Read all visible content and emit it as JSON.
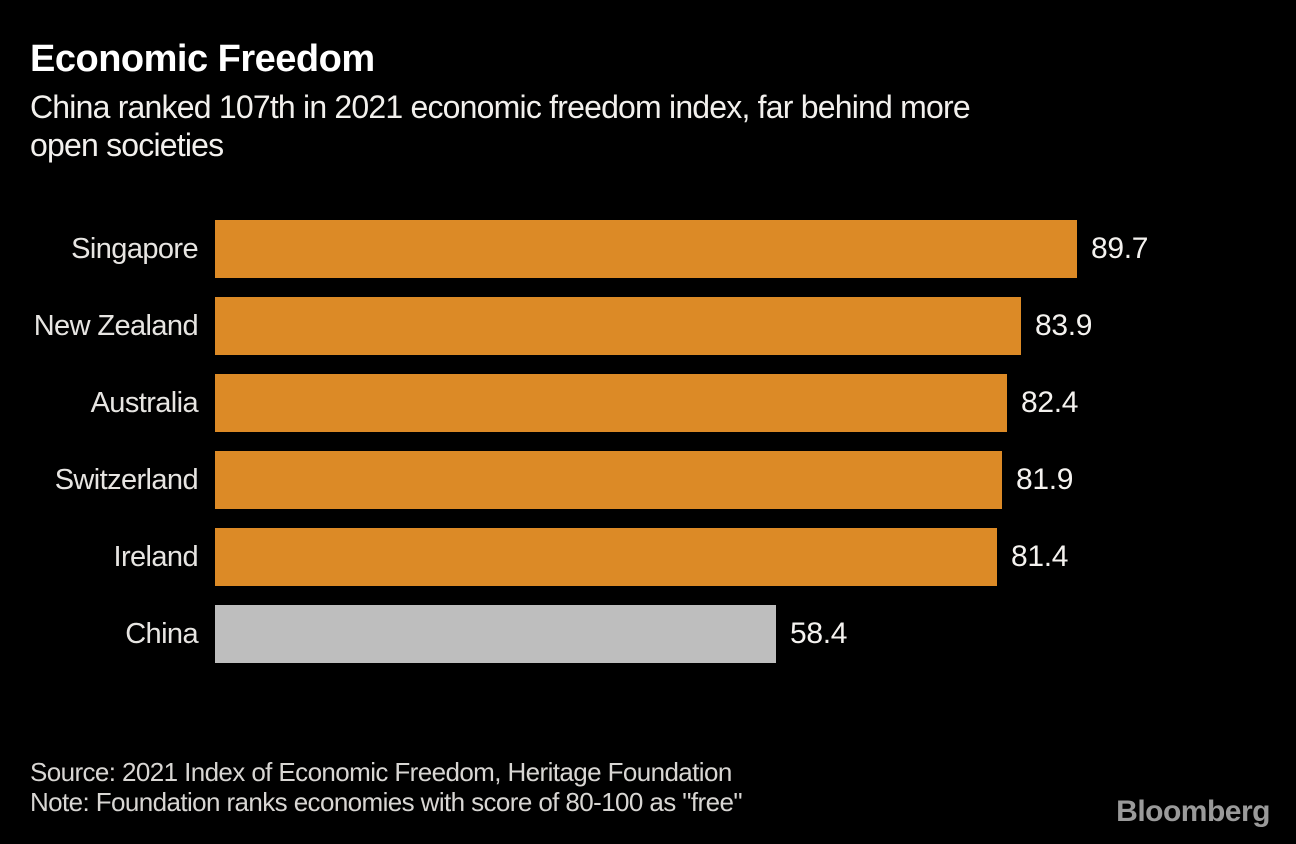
{
  "header": {
    "title": "Economic Freedom",
    "subtitle_line1": "China ranked 107th in 2021 economic freedom index, far behind more",
    "subtitle_line2": "open societies"
  },
  "chart_data": {
    "type": "bar",
    "orientation": "horizontal",
    "categories": [
      "Singapore",
      "New Zealand",
      "Australia",
      "Switzerland",
      "Ireland",
      "China"
    ],
    "values": [
      89.7,
      83.9,
      82.4,
      81.9,
      81.4,
      58.4
    ],
    "value_labels": [
      "89.7",
      "83.9",
      "82.4",
      "81.9",
      "81.4",
      "58.4"
    ],
    "title": "Economic Freedom",
    "xlabel": "",
    "ylabel": "",
    "xlim": [
      0,
      100
    ],
    "grid": false,
    "legend": false,
    "highlight_category": "China",
    "colors": {
      "bar_default": "#DC8A26",
      "bar_highlight": "#BEBEBE",
      "background": "#000000",
      "text": "#FFFFFF"
    }
  },
  "footer": {
    "source": "Source: 2021 Index of Economic Freedom, Heritage Foundation",
    "note": "Note: Foundation ranks economies with score of 80-100 as \"free\"",
    "brand": "Bloomberg"
  }
}
